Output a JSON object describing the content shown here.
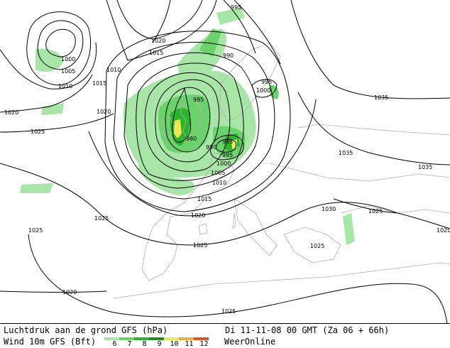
{
  "map": {
    "isobar_labels": [
      "1000",
      "1005",
      "1010",
      "1015",
      "1020",
      "1025",
      "1010",
      "1015",
      "1020",
      "1020",
      "1025",
      "995",
      "990",
      "1035",
      "1035",
      "985",
      "980",
      "985",
      "990",
      "995",
      "1000",
      "995",
      "1000",
      "1005",
      "1010",
      "1015",
      "1020",
      "1025",
      "1035",
      "1025",
      "1025",
      "1030",
      "1020",
      "1025",
      "1020",
      "1025"
    ]
  },
  "footer": {
    "line1_left": "Luchtdruk aan de grond GFS (hPa)",
    "line1_right": "Di 11-11-08 00 GMT (Za 06 + 66h)",
    "line2_left": "Wind 10m GFS (Bft)",
    "brand": "WeerOnline",
    "scale": [
      {
        "label": "6",
        "color": "#a8e6a8"
      },
      {
        "label": "7",
        "color": "#6cd26c"
      },
      {
        "label": "8",
        "color": "#2db42d"
      },
      {
        "label": "9",
        "color": "#1c8f1c"
      },
      {
        "label": "10",
        "color": "#e8e850"
      },
      {
        "label": "11",
        "color": "#f0b040"
      },
      {
        "label": "12",
        "color": "#e05020"
      }
    ]
  },
  "colors": {
    "wind_light": "#a8e6a8",
    "wind_mid": "#6cd26c",
    "wind_strong": "#2db42d",
    "wind_storm": "#e8e850",
    "isobar": "#000000",
    "coastline": "#b0b0b0"
  }
}
